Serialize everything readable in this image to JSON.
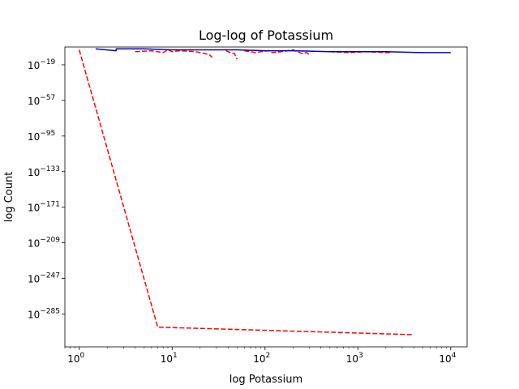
{
  "chart_data": {
    "type": "line",
    "title": "Log-log of Potassium",
    "xlabel": "log Potassium",
    "ylabel": "log Count",
    "xscale": "log",
    "yscale": "log",
    "xlim": [
      0.7,
      15000
    ],
    "ylim_exponent": [
      -320,
      0
    ],
    "x_ticks": [
      {
        "base": "10",
        "exp": "0",
        "value": 1
      },
      {
        "base": "10",
        "exp": "1",
        "value": 10
      },
      {
        "base": "10",
        "exp": "2",
        "value": 100
      },
      {
        "base": "10",
        "exp": "3",
        "value": 1000
      },
      {
        "base": "10",
        "exp": "4",
        "value": 10000
      }
    ],
    "y_ticks": [
      {
        "base": "10",
        "exp": "−19",
        "value": -19
      },
      {
        "base": "10",
        "exp": "−57",
        "value": -57
      },
      {
        "base": "10",
        "exp": "−95",
        "value": -95
      },
      {
        "base": "10",
        "exp": "−133",
        "value": -133
      },
      {
        "base": "10",
        "exp": "−171",
        "value": -171
      },
      {
        "base": "10",
        "exp": "−209",
        "value": -209
      },
      {
        "base": "10",
        "exp": "−247",
        "value": -247
      },
      {
        "base": "10",
        "exp": "−285",
        "value": -285
      }
    ],
    "series": [
      {
        "color": "#ff0000",
        "style": "dashed",
        "segments": [
          {
            "x": [
              1,
              7,
              4000
            ],
            "y_exponent": [
              -3,
              -299,
              -307
            ]
          },
          {
            "x": [
              4,
              6,
              8,
              9,
              10,
              12,
              18,
              25,
              27
            ],
            "y_exponent": [
              -5,
              -4,
              -6,
              -3,
              -5,
              -4,
              -5,
              -8,
              -11
            ]
          },
          {
            "x": [
              38,
              42,
              47,
              50
            ],
            "y_exponent": [
              -4,
              -6,
              -7,
              -13
            ]
          },
          {
            "x": [
              60,
              80,
              90,
              110,
              120,
              150,
              200,
              250,
              280,
              300
            ],
            "y_exponent": [
              -4,
              -6,
              -5,
              -4,
              -6,
              -5,
              -3,
              -7,
              -6,
              -8
            ]
          },
          {
            "x": [
              500,
              800,
              1200,
              2000,
              2300
            ],
            "y_exponent": [
              -5,
              -6,
              -5,
              -6,
              -6
            ]
          }
        ]
      },
      {
        "color": "#0000cc",
        "style": "solid",
        "segments": [
          {
            "x": [
              1.5,
              2.5,
              2.5,
              5,
              10,
              20,
              50,
              100,
              200,
              500,
              1000,
              2000,
              5000,
              10000
            ],
            "y_exponent": [
              -2,
              -4,
              -2,
              -2,
              -3,
              -3,
              -3,
              -4,
              -4,
              -5,
              -5,
              -5,
              -6,
              -6
            ]
          }
        ]
      }
    ],
    "grid": false,
    "legend": "none"
  }
}
